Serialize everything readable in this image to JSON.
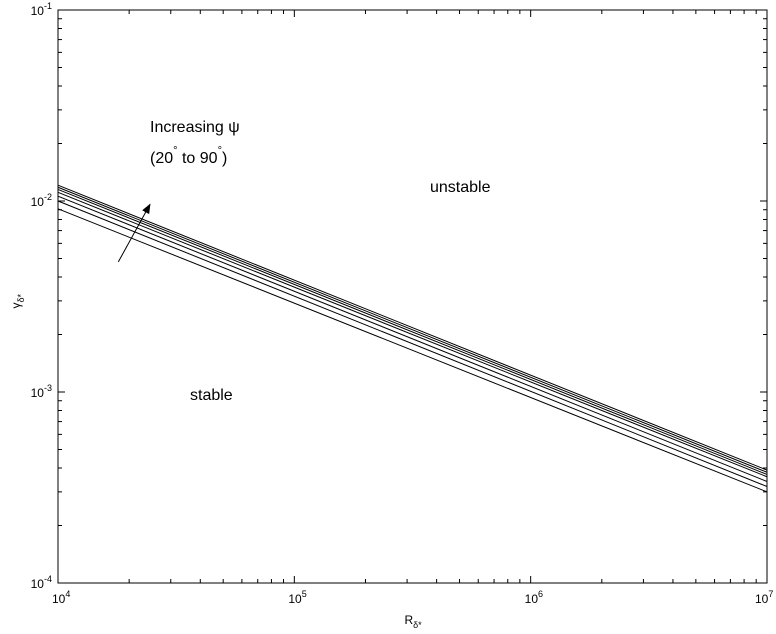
{
  "chart_data": {
    "type": "line",
    "xscale": "log",
    "yscale": "log",
    "xlim": [
      10000,
      10000000
    ],
    "ylim": [
      0.0001,
      0.1
    ],
    "grid": false,
    "xlabel": {
      "base": "R",
      "sub": "δ*"
    },
    "ylabel": {
      "base": "γ",
      "sub": "δ*"
    },
    "x_ticks": [
      {
        "value": 10000,
        "base": "10",
        "exp": "4"
      },
      {
        "value": 100000,
        "base": "10",
        "exp": "5"
      },
      {
        "value": 1000000,
        "base": "10",
        "exp": "6"
      },
      {
        "value": 10000000,
        "base": "10",
        "exp": "7"
      }
    ],
    "y_ticks": [
      {
        "value": 0.0001,
        "base": "10",
        "exp": "-4"
      },
      {
        "value": 0.001,
        "base": "10",
        "exp": "-3"
      },
      {
        "value": 0.01,
        "base": "10",
        "exp": "-2"
      },
      {
        "value": 0.1,
        "base": "10",
        "exp": "-1"
      }
    ],
    "series": [
      {
        "x": [
          10000,
          10000000
        ],
        "y": [
          0.0091,
          0.0003
        ]
      },
      {
        "x": [
          10000,
          10000000
        ],
        "y": [
          0.01,
          0.00032
        ]
      },
      {
        "x": [
          10000,
          10000000
        ],
        "y": [
          0.0106,
          0.00034
        ]
      },
      {
        "x": [
          10000,
          10000000
        ],
        "y": [
          0.0111,
          0.00036
        ]
      },
      {
        "x": [
          10000,
          10000000
        ],
        "y": [
          0.0115,
          0.00037
        ]
      },
      {
        "x": [
          10000,
          10000000
        ],
        "y": [
          0.0118,
          0.00038
        ]
      },
      {
        "x": [
          10000,
          10000000
        ],
        "y": [
          0.0121,
          0.00039
        ]
      }
    ],
    "annotations": {
      "increasing_label": "Increasing ψ",
      "range_open": "(20",
      "range_deg1": "°",
      "range_mid": " to 90",
      "range_deg2": "°",
      "range_close": ")",
      "unstable_label": "unstable",
      "stable_label": "stable",
      "arrow": {
        "from": [
          18000,
          0.0048
        ],
        "to": [
          24500,
          0.0096
        ]
      }
    }
  }
}
